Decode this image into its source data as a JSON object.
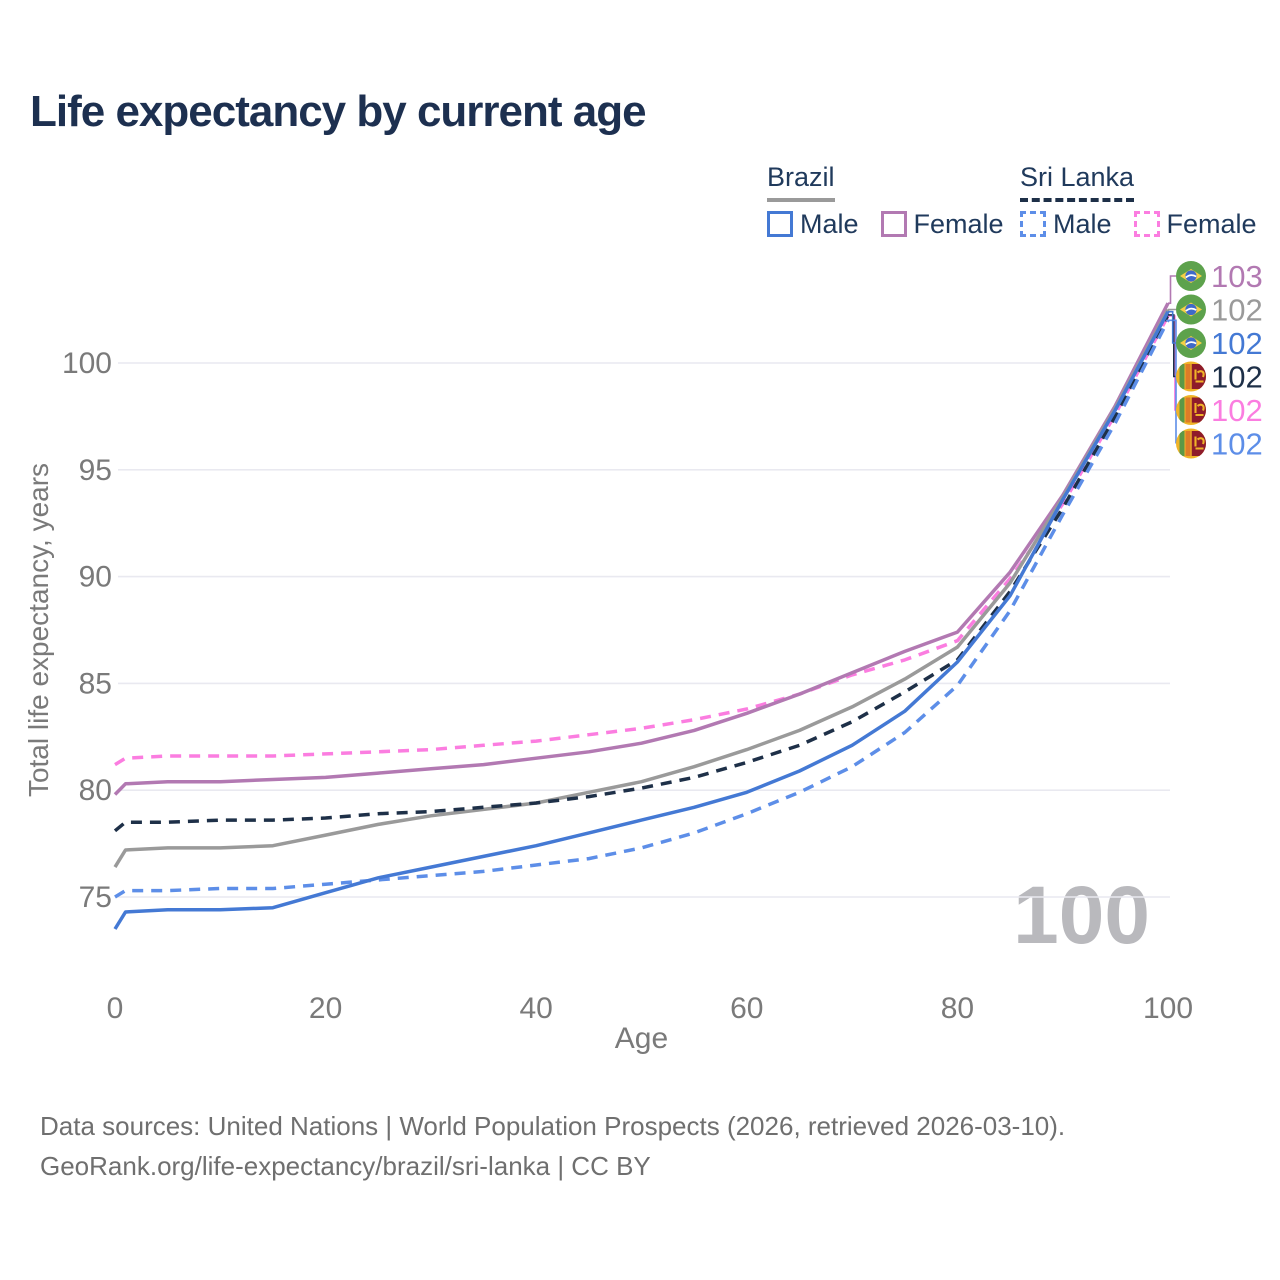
{
  "title": "Life expectancy by current age",
  "legend": {
    "brazil": {
      "title": "Brazil",
      "male": "Male",
      "female": "Female",
      "line_style": "solid",
      "underline_color": "#9a9a9a",
      "male_color": "#4479d4",
      "female_color": "#b279b2"
    },
    "sri_lanka": {
      "title": "Sri Lanka",
      "male": "Male",
      "female": "Female",
      "line_style": "dashed",
      "underline_color": "#1e3048",
      "male_color": "#5d8ee8",
      "female_color": "#fb7de0"
    }
  },
  "watermark_age": "100",
  "footer": {
    "line1": "Data sources: United Nations | World Population Prospects (2026, retrieved 2026-03-10).",
    "line2": "GeoRank.org/life-expectancy/brazil/sri-lanka | CC BY"
  },
  "chart_data": {
    "type": "line",
    "title": "Life expectancy by current age",
    "xlabel": "Age",
    "ylabel": "Total life expectancy, years",
    "xlim": [
      0,
      100
    ],
    "ylim": [
      73,
      103.5
    ],
    "x_ticks": [
      0,
      20,
      40,
      60,
      80,
      100
    ],
    "y_ticks": [
      75,
      80,
      85,
      90,
      95,
      100
    ],
    "grid": "horizontal-only",
    "legend_position": "top-right",
    "ages": [
      0,
      1,
      5,
      10,
      15,
      20,
      25,
      30,
      35,
      40,
      45,
      50,
      55,
      60,
      65,
      70,
      75,
      80,
      85,
      90,
      95,
      100
    ],
    "series": [
      {
        "name": "Sri Lanka Female",
        "country": "Sri Lanka",
        "sex": "Female",
        "color": "#fb7de0",
        "dash": true,
        "end_label_row": 4,
        "values": [
          81.2,
          81.5,
          81.6,
          81.6,
          81.6,
          81.7,
          81.8,
          81.9,
          82.1,
          82.3,
          82.6,
          82.9,
          83.3,
          83.8,
          84.5,
          85.4,
          86.1,
          87.0,
          89.9,
          93.4,
          97.6,
          102.2
        ]
      },
      {
        "name": "Brazil Female",
        "country": "Brazil",
        "sex": "Female",
        "color": "#b279b2",
        "dash": false,
        "end_label_row": 0,
        "values": [
          79.8,
          80.3,
          80.4,
          80.4,
          80.5,
          80.6,
          80.8,
          81.0,
          81.2,
          81.5,
          81.8,
          82.2,
          82.8,
          83.6,
          84.5,
          85.5,
          86.5,
          87.4,
          90.2,
          93.8,
          98.0,
          102.8
        ]
      },
      {
        "name": "Brazil",
        "country": "Brazil",
        "sex": "Both",
        "color": "#9a9a9a",
        "dash": false,
        "end_label_row": 1,
        "values": [
          76.4,
          77.2,
          77.3,
          77.3,
          77.4,
          77.9,
          78.4,
          78.8,
          79.1,
          79.4,
          79.9,
          80.4,
          81.1,
          81.9,
          82.8,
          83.9,
          85.2,
          86.7,
          89.7,
          93.7,
          97.9,
          102.5
        ]
      },
      {
        "name": "Sri Lanka",
        "country": "Sri Lanka",
        "sex": "Both",
        "color": "#1e3048",
        "dash": true,
        "end_label_row": 3,
        "values": [
          78.1,
          78.5,
          78.5,
          78.6,
          78.6,
          78.7,
          78.9,
          79.0,
          79.2,
          79.4,
          79.7,
          80.1,
          80.6,
          81.3,
          82.1,
          83.2,
          84.6,
          86.1,
          89.3,
          93.2,
          97.5,
          102.25
        ]
      },
      {
        "name": "Sri Lanka Male",
        "country": "Sri Lanka",
        "sex": "Male",
        "color": "#5d8ee8",
        "dash": true,
        "end_label_row": 5,
        "values": [
          75.0,
          75.3,
          75.3,
          75.4,
          75.4,
          75.6,
          75.8,
          76.0,
          76.2,
          76.5,
          76.8,
          77.3,
          78.0,
          78.9,
          79.9,
          81.1,
          82.7,
          84.9,
          88.4,
          92.9,
          97.2,
          102.0
        ]
      },
      {
        "name": "Brazil Male",
        "country": "Brazil",
        "sex": "Male",
        "color": "#4479d4",
        "dash": false,
        "end_label_row": 2,
        "values": [
          73.5,
          74.3,
          74.4,
          74.4,
          74.5,
          75.2,
          75.9,
          76.4,
          76.9,
          77.4,
          78.0,
          78.6,
          79.2,
          79.9,
          80.9,
          82.1,
          83.7,
          86.0,
          89.1,
          93.6,
          97.8,
          102.4
        ]
      }
    ],
    "end_labels": [
      {
        "value": "103",
        "flag": "brazil",
        "color": "#b279b2",
        "series": "Brazil Female"
      },
      {
        "value": "102",
        "flag": "brazil",
        "color": "#9a9a9a",
        "series": "Brazil"
      },
      {
        "value": "102",
        "flag": "brazil",
        "color": "#4479d4",
        "series": "Brazil Male"
      },
      {
        "value": "102",
        "flag": "sri-lanka",
        "color": "#1e3048",
        "series": "Sri Lanka"
      },
      {
        "value": "102",
        "flag": "sri-lanka",
        "color": "#fb7de0",
        "series": "Sri Lanka Female"
      },
      {
        "value": "102",
        "flag": "sri-lanka",
        "color": "#5d8ee8",
        "series": "Sri Lanka Male"
      }
    ]
  }
}
